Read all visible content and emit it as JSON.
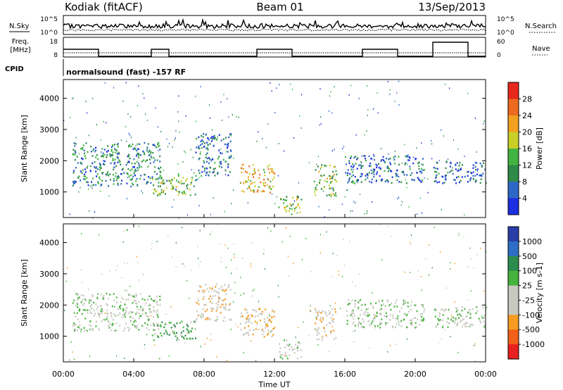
{
  "header": {
    "station": "Kodiak (fitACF)",
    "beam": "Beam 01",
    "date": "13/Sep/2013"
  },
  "top_strip": {
    "left_label_nsky": "N.Sky",
    "left_label_freq": "Freq.",
    "left_label_mhz": "[MHz]",
    "left_label_cpid": "CPID",
    "left_ticks_noise": [
      "10^5",
      "10^0"
    ],
    "left_ticks_freq": [
      "18",
      "8"
    ],
    "right_label_nsearch": "N.Search",
    "right_label_nave": "Nave",
    "right_ticks_noise": [
      "10^5",
      "10^0"
    ],
    "right_ticks_nave": [
      "60",
      "0"
    ],
    "cpid_text": "normalsound (fast) -157 RF"
  },
  "x_axis": {
    "label": "Time UT",
    "ticks": [
      "00:00",
      "04:00",
      "08:00",
      "12:00",
      "16:00",
      "20:00",
      "00:00"
    ]
  },
  "colors": {
    "power": [
      "#1c2ee0",
      "#2e68c6",
      "#2e8a48",
      "#41b441",
      "#c8d028",
      "#f2a01e",
      "#ee6a1e",
      "#e8281c"
    ],
    "velocity": [
      "#e82020",
      "#f06018",
      "#f59c20",
      "#c8c8c0",
      "#c8c8c0",
      "#46b43c",
      "#2e8c4e",
      "#2f6ec6",
      "#2a3ea8"
    ]
  },
  "chart_data": [
    {
      "type": "heatmap",
      "panel": "power",
      "ylabel": "Slant Range [km]",
      "yticks": [
        "1000",
        "2000",
        "3000",
        "4000"
      ],
      "ylim": [
        180,
        4600
      ],
      "xlim": [
        0,
        24
      ],
      "colorbar_label": "Power [dB]",
      "colorbar_ticks": [
        "4",
        "8",
        "12",
        "16",
        "20",
        "24",
        "28"
      ],
      "clim": [
        0,
        32
      ],
      "scatter_regions": [
        {
          "t0": 0.5,
          "t1": 5.5,
          "r0": 1200,
          "r1": 2600,
          "value": 9
        },
        {
          "t0": 5.0,
          "t1": 7.5,
          "r0": 900,
          "r1": 1600,
          "value": 14
        },
        {
          "t0": 7.5,
          "t1": 9.5,
          "r0": 1500,
          "r1": 2900,
          "value": 8
        },
        {
          "t0": 10.0,
          "t1": 12.0,
          "r0": 1000,
          "r1": 1900,
          "value": 21
        },
        {
          "t0": 12.2,
          "t1": 13.5,
          "r0": 300,
          "r1": 900,
          "value": 17
        },
        {
          "t0": 14.2,
          "t1": 15.5,
          "r0": 900,
          "r1": 1900,
          "value": 15
        },
        {
          "t0": 16.0,
          "t1": 20.5,
          "r0": 1300,
          "r1": 2200,
          "value": 7
        },
        {
          "t0": 21.0,
          "t1": 24.0,
          "r0": 1300,
          "r1": 2000,
          "value": 6
        }
      ]
    },
    {
      "type": "heatmap",
      "panel": "velocity",
      "ylabel": "Slant Range [km]",
      "yticks": [
        "1000",
        "2000",
        "3000",
        "4000"
      ],
      "ylim": [
        180,
        4600
      ],
      "xlim": [
        0,
        24
      ],
      "colorbar_label": "Velocity [m s-1]",
      "colorbar_ticks": [
        "1000",
        "500",
        "100",
        "25",
        "-25",
        "-100",
        "-500",
        "-1000"
      ],
      "scatter_regions": [
        {
          "t0": 0.5,
          "t1": 5.5,
          "r0": 1200,
          "r1": 2400,
          "value": 0
        },
        {
          "t0": 5.0,
          "t1": 7.5,
          "r0": 900,
          "r1": 1500,
          "value": 80
        },
        {
          "t0": 7.5,
          "t1": 9.5,
          "r0": 1500,
          "r1": 2700,
          "value": -60
        },
        {
          "t0": 10.0,
          "t1": 12.0,
          "r0": 1000,
          "r1": 1900,
          "value": -80
        },
        {
          "t0": 12.2,
          "t1": 13.5,
          "r0": 300,
          "r1": 900,
          "value": -10
        },
        {
          "t0": 14.2,
          "t1": 15.5,
          "r0": 900,
          "r1": 1900,
          "value": -50
        },
        {
          "t0": 16.0,
          "t1": 20.5,
          "r0": 1300,
          "r1": 2200,
          "value": 0
        },
        {
          "t0": 21.0,
          "t1": 24.0,
          "r0": 1300,
          "r1": 2000,
          "value": 0
        }
      ]
    }
  ]
}
